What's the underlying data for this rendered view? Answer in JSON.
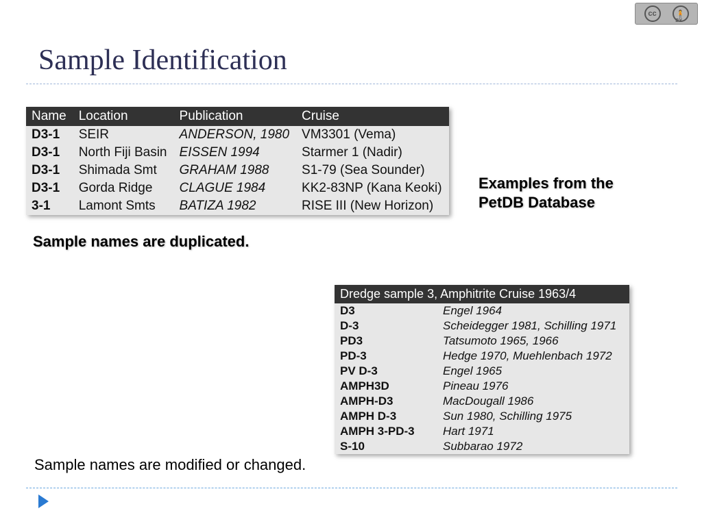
{
  "title": "Sample Identification",
  "cc_badge": {
    "left_label": "cc",
    "right_label": "🧍",
    "by_text": "BY"
  },
  "annotations": {
    "examples": "Examples from the PetDB Database",
    "duplicated": "Sample names are duplicated.",
    "modified": "Sample names are modified or changed."
  },
  "table1": {
    "headers": [
      "Name",
      "Location",
      "Publication",
      "Cruise"
    ],
    "rows": [
      [
        "D3-1",
        "SEIR",
        "ANDERSON, 1980",
        "VM3301 (Vema)"
      ],
      [
        "D3-1",
        "North Fiji Basin",
        "EISSEN 1994",
        "Starmer 1 (Nadir)"
      ],
      [
        "D3-1",
        "Shimada Smt",
        "GRAHAM 1988",
        "S1-79 (Sea Sounder)"
      ],
      [
        "D3-1",
        "Gorda Ridge",
        "CLAGUE 1984",
        "KK2-83NP (Kana Keoki)"
      ],
      [
        "3-1",
        "Lamont Smts",
        "BATIZA 1982",
        "RISE III (New Horizon)"
      ]
    ]
  },
  "table2": {
    "header": "Dredge sample 3, Amphitrite Cruise 1963/4",
    "rows": [
      [
        "D3",
        "Engel 1964"
      ],
      [
        "D-3",
        "Scheidegger 1981, Schilling 1971"
      ],
      [
        "PD3",
        "Tatsumoto 1965, 1966"
      ],
      [
        "PD-3",
        "Hedge 1970, Muehlenbach 1972"
      ],
      [
        "PV D-3",
        "Engel 1965"
      ],
      [
        "AMPH3D",
        "Pineau 1976"
      ],
      [
        "AMPH-D3",
        "MacDougall 1986"
      ],
      [
        "AMPH D-3",
        "Sun 1980, Schilling 1975"
      ],
      [
        "AMPH 3-PD-3",
        "Hart 1971"
      ],
      [
        "S-10",
        "Subbarao 1972"
      ]
    ]
  },
  "colors": {
    "title_color": "#2d2f55",
    "rule_top": "#9fb6d9",
    "rule_bottom": "#6aa6de",
    "table_header_bg": "#333333",
    "table_body_bg": "#e7e7e7",
    "triangle": "#2a7ad2"
  }
}
